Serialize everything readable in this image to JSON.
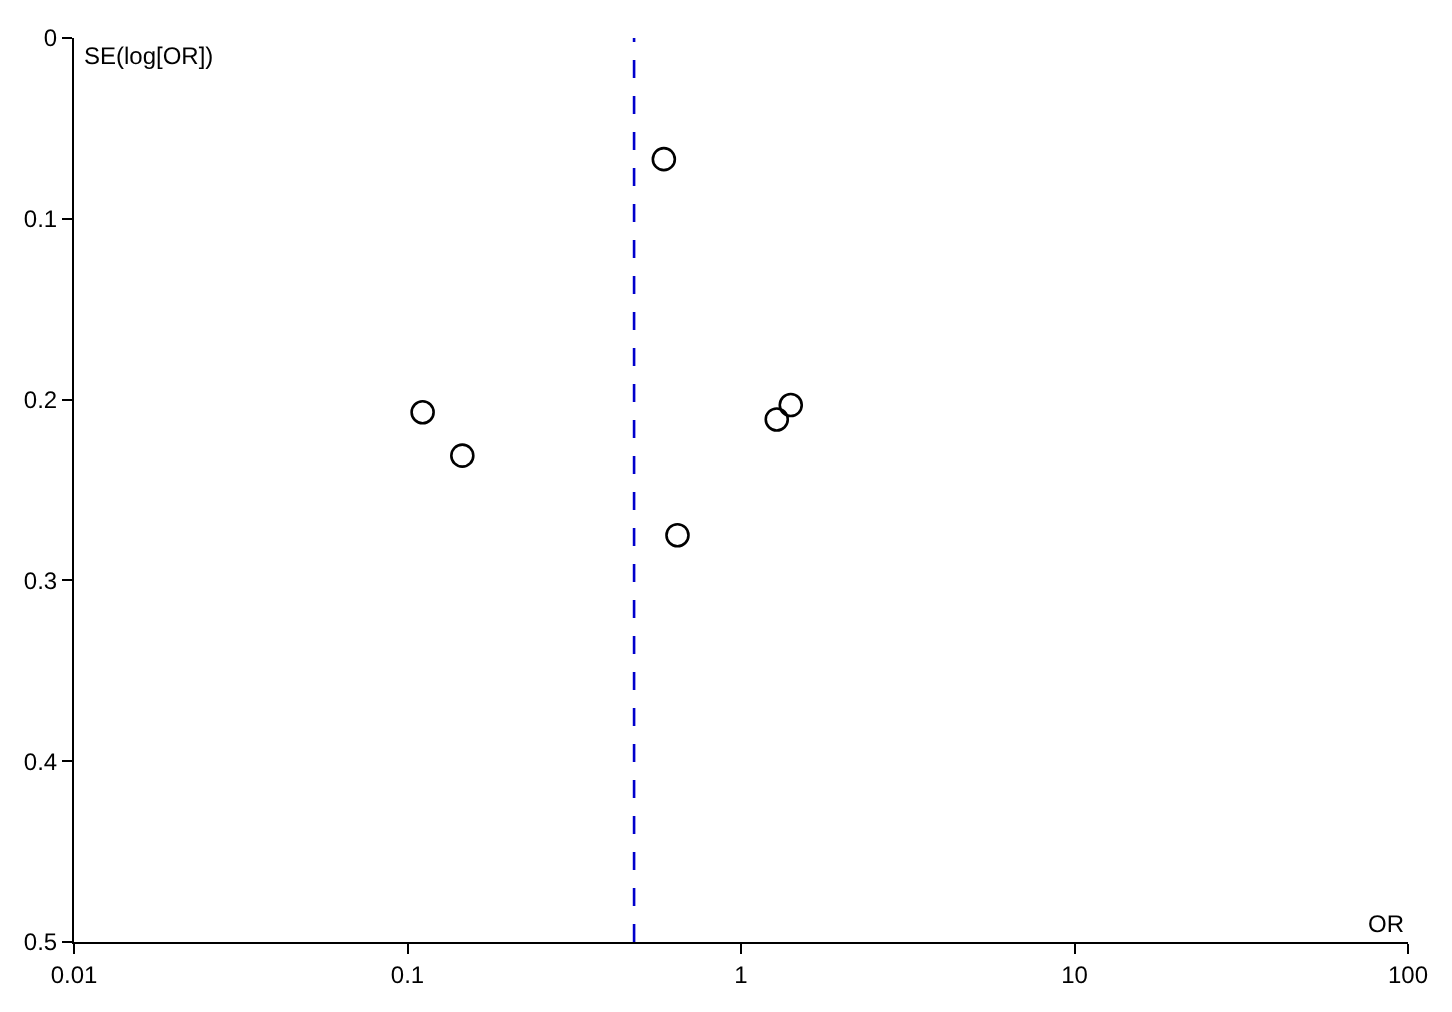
{
  "chart_data": {
    "type": "scatter",
    "xlabel": "OR",
    "ylabel": "SE(log[OR])",
    "series": [
      {
        "color": "#000000",
        "x": [
          0.587,
          0.111,
          0.146,
          1.41,
          1.28,
          0.645
        ],
        "values": [
          0.067,
          0.207,
          0.231,
          0.203,
          0.211,
          0.275
        ]
      }
    ],
    "log": "x",
    "xlim": [
      0.01,
      100
    ],
    "xticks": [
      0.01,
      0.1,
      1,
      10,
      100
    ],
    "ylim": [
      0.5,
      0
    ],
    "yticks": [
      0,
      0.1,
      0.2,
      0.3,
      0.4,
      0.5
    ],
    "ref_lines": [
      {
        "axis": "x",
        "value": 0.478,
        "label": null,
        "color": "#0000cc",
        "line_style": "dashed"
      }
    ],
    "marker": "circle"
  }
}
